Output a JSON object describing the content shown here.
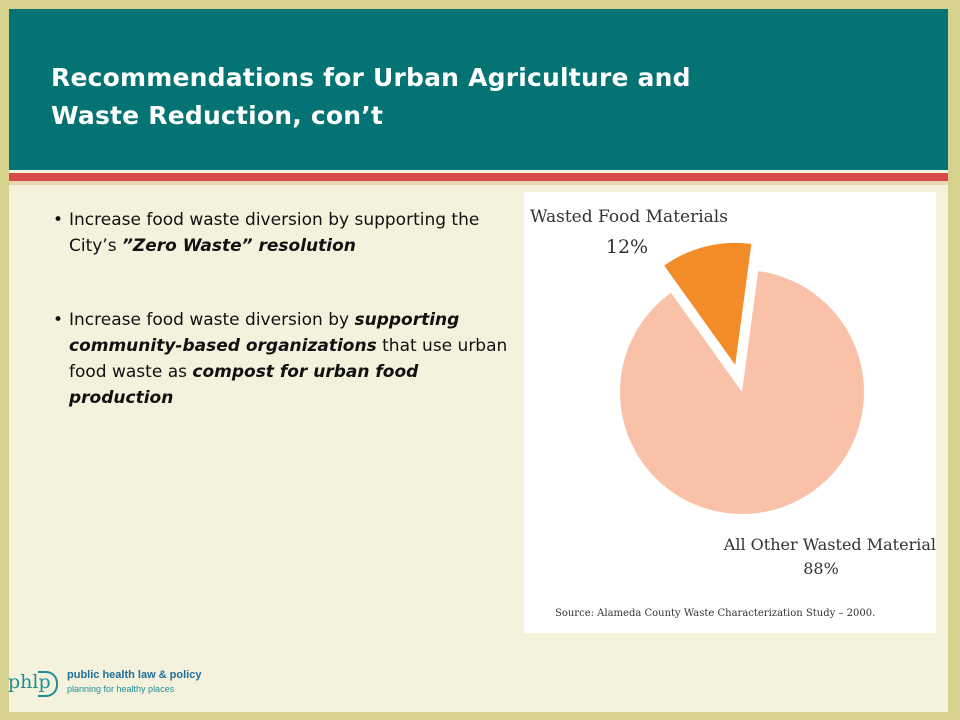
{
  "title": {
    "line1": "Recommendations for Urban Agriculture and",
    "line2": "Waste Reduction, con’t"
  },
  "bullets": [
    {
      "segments": [
        {
          "text": "Increase food waste diversion by supporting the City’s ",
          "style": "normal"
        },
        {
          "text": "”Zero Waste” resolution",
          "style": "bold-italic"
        }
      ]
    },
    {
      "segments": [
        {
          "text": "Increase food waste diversion by ",
          "style": "normal"
        },
        {
          "text": "supporting community-based organizations",
          "style": "bold-italic"
        },
        {
          "text": " that use urban food waste as ",
          "style": "normal"
        },
        {
          "text": "compost for urban food production",
          "style": "bold-italic"
        }
      ]
    }
  ],
  "chart_data": {
    "type": "pie",
    "title": "",
    "slices": [
      {
        "label": "Wasted Food Materials",
        "value": 12,
        "value_label": "12%",
        "color": "#f28c28",
        "exploded": true
      },
      {
        "label": "All Other Wasted Materials",
        "value": 88,
        "value_label": "88%",
        "color": "#f9c2a8",
        "exploded": false
      }
    ],
    "source": "Source: Alameda County Waste Characterization Study – 2000."
  },
  "logo": {
    "mark": "phlp",
    "line1": "public health law & policy",
    "line2": "planning for healthy places"
  },
  "colors": {
    "header": "#047374",
    "accent_stripe": "#d64b47",
    "background": "#f4f1dc"
  }
}
